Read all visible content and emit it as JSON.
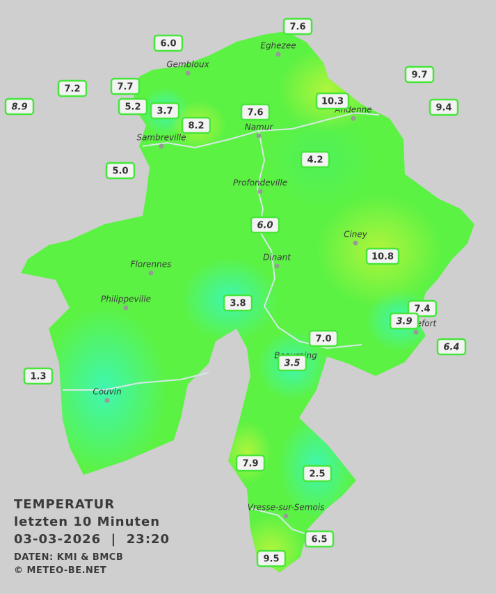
{
  "title": {
    "lines": [
      "TEMPERATUR",
      "letzten 10 Minuten",
      "03-03-2026  |  23:20"
    ],
    "sources": [
      "DATEN: KMI & BMCB",
      "© METEO-BE.NET"
    ]
  },
  "cities": [
    "Eghezee",
    "Gembloux",
    "Andenne",
    "Namur",
    "Sambreville",
    "Profondeville",
    "Ciney",
    "Florennes",
    "Dinant",
    "Philippeville",
    "Rochefort",
    "Beauraing",
    "Couvin",
    "Vresse-sur-Semois"
  ],
  "stations": [
    "7.6",
    "6.0",
    "9.7",
    "7.2",
    "7.7",
    "8.9",
    "10.3",
    "9.4",
    "5.2",
    "3.7",
    "7.6",
    "8.2",
    "4.2",
    "5.0",
    "6.0",
    "10.8",
    "3.8",
    "7.4",
    "3.9",
    "7.0",
    "6.4",
    "3.5",
    "1.3",
    "7.9",
    "2.5",
    "6.5",
    "9.5"
  ]
}
